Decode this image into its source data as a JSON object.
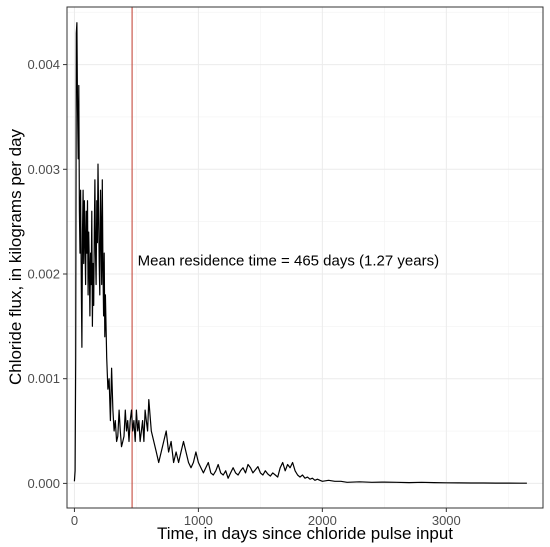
{
  "chart_data": {
    "type": "line",
    "xlabel": "Time, in days since chloride pulse input",
    "ylabel": "Chloride flux, in kilograms per day",
    "xlim": [
      -60,
      3780
    ],
    "ylim": [
      -0.000235,
      0.00455
    ],
    "xticks": [
      0,
      1000,
      2000,
      3000
    ],
    "xtick_labels": [
      "0",
      "1000",
      "2000",
      "3000"
    ],
    "yticks": [
      0.0,
      0.001,
      0.002,
      0.003,
      0.004
    ],
    "ytick_labels": [
      "0.000",
      "0.001",
      "0.002",
      "0.003",
      "0.004"
    ],
    "grid": true,
    "theme": "bw",
    "vline": {
      "x": 465,
      "color": "#c0392b"
    },
    "annotation": {
      "text": "Mean residence time = 465 days (1.27 years)",
      "x": 510,
      "y": 0.00208
    },
    "series": [
      {
        "color": "#000000",
        "x": [
          0,
          5,
          10,
          15,
          20,
          25,
          30,
          35,
          40,
          45,
          50,
          55,
          60,
          65,
          70,
          75,
          80,
          85,
          90,
          95,
          100,
          105,
          110,
          115,
          120,
          125,
          130,
          135,
          140,
          145,
          150,
          155,
          160,
          165,
          170,
          175,
          180,
          185,
          190,
          195,
          200,
          205,
          210,
          215,
          220,
          225,
          230,
          235,
          240,
          245,
          250,
          260,
          270,
          280,
          290,
          300,
          310,
          320,
          330,
          340,
          350,
          360,
          370,
          380,
          390,
          400,
          410,
          420,
          430,
          440,
          450,
          460,
          470,
          480,
          490,
          500,
          510,
          520,
          530,
          540,
          550,
          560,
          570,
          580,
          590,
          600,
          620,
          640,
          660,
          680,
          700,
          720,
          740,
          760,
          780,
          800,
          820,
          840,
          860,
          880,
          900,
          920,
          940,
          960,
          980,
          1000,
          1020,
          1040,
          1060,
          1080,
          1100,
          1120,
          1140,
          1160,
          1180,
          1200,
          1220,
          1240,
          1260,
          1280,
          1300,
          1320,
          1340,
          1360,
          1380,
          1400,
          1420,
          1440,
          1460,
          1480,
          1500,
          1520,
          1540,
          1560,
          1580,
          1600,
          1620,
          1640,
          1660,
          1680,
          1700,
          1720,
          1740,
          1760,
          1780,
          1800,
          1820,
          1840,
          1860,
          1880,
          1900,
          1920,
          1940,
          1960,
          1980,
          2000,
          2050,
          2100,
          2150,
          2200,
          2300,
          2400,
          2500,
          2600,
          2700,
          2800,
          2900,
          3000,
          3100,
          3200,
          3300,
          3400,
          3500,
          3600,
          3650
        ],
        "y": [
          2e-05,
          0.00012,
          0.0012,
          0.0043,
          0.0044,
          0.0036,
          0.0031,
          0.0038,
          0.0026,
          0.0022,
          0.0028,
          0.0019,
          0.0013,
          0.0024,
          0.0028,
          0.0021,
          0.0027,
          0.0023,
          0.0019,
          0.0026,
          0.0022,
          0.0027,
          0.0018,
          0.0024,
          0.0021,
          0.0016,
          0.0022,
          0.0019,
          0.0026,
          0.0015,
          0.0021,
          0.0017,
          0.0024,
          0.0029,
          0.0022,
          0.0019,
          0.0027,
          0.0023,
          0.00305,
          0.0026,
          0.0021,
          0.0018,
          0.0028,
          0.0024,
          0.0019,
          0.0029,
          0.0021,
          0.0016,
          0.0022,
          0.0014,
          0.0018,
          0.0012,
          0.0009,
          0.001,
          0.0006,
          0.0011,
          0.0007,
          0.0005,
          0.0006,
          0.0004,
          0.00045,
          0.0007,
          0.0005,
          0.00035,
          0.0004,
          0.00045,
          0.0007,
          0.0005,
          0.0006,
          0.0004,
          0.0006,
          0.0007,
          0.0005,
          0.0006,
          0.0004,
          0.0007,
          0.0005,
          0.0006,
          0.0004,
          0.0005,
          0.0006,
          0.0004,
          0.0007,
          0.0006,
          0.0005,
          0.0008,
          0.0005,
          0.0004,
          0.0003,
          0.0002,
          0.0003,
          0.0004,
          0.0005,
          0.0003,
          0.0004,
          0.0002,
          0.0003,
          0.0002,
          0.0003,
          0.0004,
          0.0003,
          0.0002,
          0.00015,
          0.0002,
          0.0003,
          0.0002,
          0.00015,
          0.0001,
          0.00015,
          0.0002,
          0.0001,
          8e-05,
          0.00012,
          0.00018,
          0.0001,
          8e-05,
          0.00012,
          5e-05,
          0.0001,
          0.00015,
          0.0001,
          8e-05,
          0.00012,
          0.00015,
          0.0001,
          0.00018,
          0.00015,
          0.0001,
          0.00013,
          0.00016,
          0.0001,
          8e-05,
          0.00012,
          9e-05,
          7e-05,
          0.0001,
          8e-05,
          6e-05,
          0.00015,
          0.0002,
          0.00012,
          0.00018,
          0.00015,
          0.0002,
          0.00012,
          8e-05,
          6e-05,
          8e-05,
          5e-05,
          6e-05,
          4e-05,
          5e-05,
          3e-05,
          4e-05,
          3e-05,
          2e-05,
          3e-05,
          2e-05,
          2e-05,
          1e-05,
          1.5e-05,
          1e-05,
          1.2e-05,
          1e-05,
          8e-06,
          1e-05,
          8e-06,
          6e-06,
          5e-06,
          4e-06,
          4e-06,
          3e-06,
          3e-06,
          2e-06,
          2e-06
        ]
      }
    ]
  }
}
